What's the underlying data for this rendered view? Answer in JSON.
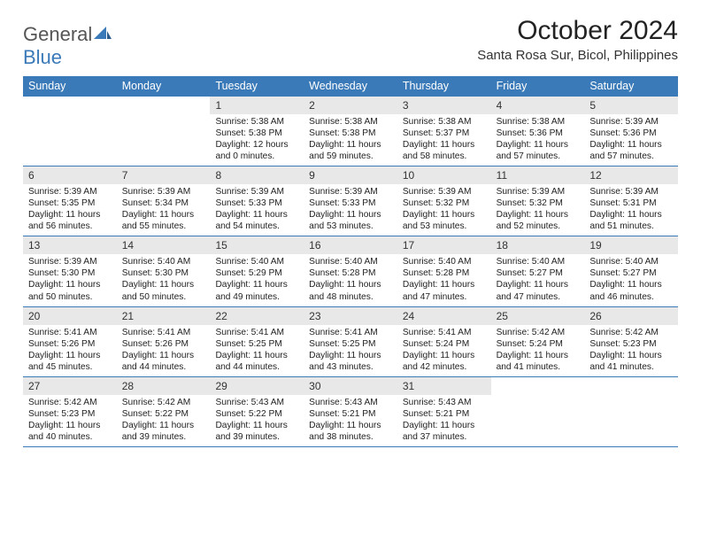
{
  "brand": {
    "word1": "General",
    "word2": "Blue"
  },
  "title": "October 2024",
  "location": "Santa Rosa Sur, Bicol, Philippines",
  "colors": {
    "accent": "#3b7ab8",
    "header_text": "#ffffff",
    "daynum_bg": "#e8e8e8",
    "body_text": "#222222",
    "page_bg": "#ffffff"
  },
  "day_headers": [
    "Sunday",
    "Monday",
    "Tuesday",
    "Wednesday",
    "Thursday",
    "Friday",
    "Saturday"
  ],
  "weeks": [
    [
      {
        "day": "",
        "sunrise": "",
        "sunset": "",
        "daylight": ""
      },
      {
        "day": "",
        "sunrise": "",
        "sunset": "",
        "daylight": ""
      },
      {
        "day": "1",
        "sunrise": "Sunrise: 5:38 AM",
        "sunset": "Sunset: 5:38 PM",
        "daylight": "Daylight: 12 hours and 0 minutes."
      },
      {
        "day": "2",
        "sunrise": "Sunrise: 5:38 AM",
        "sunset": "Sunset: 5:38 PM",
        "daylight": "Daylight: 11 hours and 59 minutes."
      },
      {
        "day": "3",
        "sunrise": "Sunrise: 5:38 AM",
        "sunset": "Sunset: 5:37 PM",
        "daylight": "Daylight: 11 hours and 58 minutes."
      },
      {
        "day": "4",
        "sunrise": "Sunrise: 5:38 AM",
        "sunset": "Sunset: 5:36 PM",
        "daylight": "Daylight: 11 hours and 57 minutes."
      },
      {
        "day": "5",
        "sunrise": "Sunrise: 5:39 AM",
        "sunset": "Sunset: 5:36 PM",
        "daylight": "Daylight: 11 hours and 57 minutes."
      }
    ],
    [
      {
        "day": "6",
        "sunrise": "Sunrise: 5:39 AM",
        "sunset": "Sunset: 5:35 PM",
        "daylight": "Daylight: 11 hours and 56 minutes."
      },
      {
        "day": "7",
        "sunrise": "Sunrise: 5:39 AM",
        "sunset": "Sunset: 5:34 PM",
        "daylight": "Daylight: 11 hours and 55 minutes."
      },
      {
        "day": "8",
        "sunrise": "Sunrise: 5:39 AM",
        "sunset": "Sunset: 5:33 PM",
        "daylight": "Daylight: 11 hours and 54 minutes."
      },
      {
        "day": "9",
        "sunrise": "Sunrise: 5:39 AM",
        "sunset": "Sunset: 5:33 PM",
        "daylight": "Daylight: 11 hours and 53 minutes."
      },
      {
        "day": "10",
        "sunrise": "Sunrise: 5:39 AM",
        "sunset": "Sunset: 5:32 PM",
        "daylight": "Daylight: 11 hours and 53 minutes."
      },
      {
        "day": "11",
        "sunrise": "Sunrise: 5:39 AM",
        "sunset": "Sunset: 5:32 PM",
        "daylight": "Daylight: 11 hours and 52 minutes."
      },
      {
        "day": "12",
        "sunrise": "Sunrise: 5:39 AM",
        "sunset": "Sunset: 5:31 PM",
        "daylight": "Daylight: 11 hours and 51 minutes."
      }
    ],
    [
      {
        "day": "13",
        "sunrise": "Sunrise: 5:39 AM",
        "sunset": "Sunset: 5:30 PM",
        "daylight": "Daylight: 11 hours and 50 minutes."
      },
      {
        "day": "14",
        "sunrise": "Sunrise: 5:40 AM",
        "sunset": "Sunset: 5:30 PM",
        "daylight": "Daylight: 11 hours and 50 minutes."
      },
      {
        "day": "15",
        "sunrise": "Sunrise: 5:40 AM",
        "sunset": "Sunset: 5:29 PM",
        "daylight": "Daylight: 11 hours and 49 minutes."
      },
      {
        "day": "16",
        "sunrise": "Sunrise: 5:40 AM",
        "sunset": "Sunset: 5:28 PM",
        "daylight": "Daylight: 11 hours and 48 minutes."
      },
      {
        "day": "17",
        "sunrise": "Sunrise: 5:40 AM",
        "sunset": "Sunset: 5:28 PM",
        "daylight": "Daylight: 11 hours and 47 minutes."
      },
      {
        "day": "18",
        "sunrise": "Sunrise: 5:40 AM",
        "sunset": "Sunset: 5:27 PM",
        "daylight": "Daylight: 11 hours and 47 minutes."
      },
      {
        "day": "19",
        "sunrise": "Sunrise: 5:40 AM",
        "sunset": "Sunset: 5:27 PM",
        "daylight": "Daylight: 11 hours and 46 minutes."
      }
    ],
    [
      {
        "day": "20",
        "sunrise": "Sunrise: 5:41 AM",
        "sunset": "Sunset: 5:26 PM",
        "daylight": "Daylight: 11 hours and 45 minutes."
      },
      {
        "day": "21",
        "sunrise": "Sunrise: 5:41 AM",
        "sunset": "Sunset: 5:26 PM",
        "daylight": "Daylight: 11 hours and 44 minutes."
      },
      {
        "day": "22",
        "sunrise": "Sunrise: 5:41 AM",
        "sunset": "Sunset: 5:25 PM",
        "daylight": "Daylight: 11 hours and 44 minutes."
      },
      {
        "day": "23",
        "sunrise": "Sunrise: 5:41 AM",
        "sunset": "Sunset: 5:25 PM",
        "daylight": "Daylight: 11 hours and 43 minutes."
      },
      {
        "day": "24",
        "sunrise": "Sunrise: 5:41 AM",
        "sunset": "Sunset: 5:24 PM",
        "daylight": "Daylight: 11 hours and 42 minutes."
      },
      {
        "day": "25",
        "sunrise": "Sunrise: 5:42 AM",
        "sunset": "Sunset: 5:24 PM",
        "daylight": "Daylight: 11 hours and 41 minutes."
      },
      {
        "day": "26",
        "sunrise": "Sunrise: 5:42 AM",
        "sunset": "Sunset: 5:23 PM",
        "daylight": "Daylight: 11 hours and 41 minutes."
      }
    ],
    [
      {
        "day": "27",
        "sunrise": "Sunrise: 5:42 AM",
        "sunset": "Sunset: 5:23 PM",
        "daylight": "Daylight: 11 hours and 40 minutes."
      },
      {
        "day": "28",
        "sunrise": "Sunrise: 5:42 AM",
        "sunset": "Sunset: 5:22 PM",
        "daylight": "Daylight: 11 hours and 39 minutes."
      },
      {
        "day": "29",
        "sunrise": "Sunrise: 5:43 AM",
        "sunset": "Sunset: 5:22 PM",
        "daylight": "Daylight: 11 hours and 39 minutes."
      },
      {
        "day": "30",
        "sunrise": "Sunrise: 5:43 AM",
        "sunset": "Sunset: 5:21 PM",
        "daylight": "Daylight: 11 hours and 38 minutes."
      },
      {
        "day": "31",
        "sunrise": "Sunrise: 5:43 AM",
        "sunset": "Sunset: 5:21 PM",
        "daylight": "Daylight: 11 hours and 37 minutes."
      },
      {
        "day": "",
        "sunrise": "",
        "sunset": "",
        "daylight": ""
      },
      {
        "day": "",
        "sunrise": "",
        "sunset": "",
        "daylight": ""
      }
    ]
  ]
}
